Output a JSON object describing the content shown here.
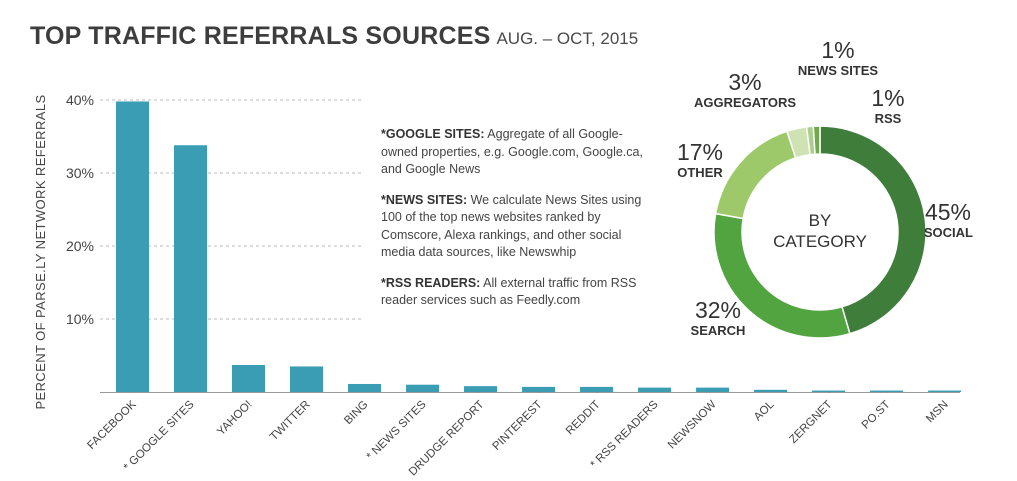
{
  "title": {
    "main": "TOP TRAFFIC REFERRALS SOURCES",
    "sub": "AUG. – OCT, 2015"
  },
  "notes": [
    {
      "label": "*GOOGLE SITES:",
      "text": "Aggregate of all Google-owned properties, e.g. Google.com, Google.ca, and Google News"
    },
    {
      "label": "*NEWS SITES:",
      "text": "We calculate News Sites using 100 of the top news websites ranked by Comscore, Alexa rankings, and other social media data sources, like Newswhip"
    },
    {
      "label": "*RSS READERS:",
      "text": "All external traffic from RSS reader services such as Feedly.com"
    }
  ],
  "colors": {
    "bar": "#3a9db3",
    "grid": "#bbbbbb",
    "social": "#3f7d3a",
    "search": "#52a441",
    "other": "#9ec96a",
    "aggregators": "#cfe2b4",
    "news_sites": "#a9cf8a",
    "rss": "#6ea84f"
  },
  "chart_data": [
    {
      "type": "bar",
      "title": "TOP TRAFFIC REFERRALS SOURCES",
      "ylabel": "PERCENT OF PARSE.LY NETWORK REFERRALS",
      "xlabel": "",
      "ylim": [
        0,
        40
      ],
      "yticks": [
        10,
        20,
        30,
        40
      ],
      "ytick_labels": [
        "10%",
        "20%",
        "30%",
        "40%"
      ],
      "grid": true,
      "categories": [
        "FACEBOOK",
        "* GOOGLE SITES",
        "YAHOO!",
        "TWITTER",
        "BING",
        "* NEWS SITES",
        "DRUDGE REPORT",
        "PINTEREST",
        "REDDIT",
        "* RSS READERS",
        "NEWSNOW",
        "AOL",
        "ZERGNET",
        "PO.ST",
        "MSN"
      ],
      "values": [
        39.8,
        33.8,
        3.7,
        3.5,
        1.1,
        1.0,
        0.8,
        0.7,
        0.7,
        0.6,
        0.6,
        0.3,
        0.2,
        0.2,
        0.2
      ]
    },
    {
      "type": "pie",
      "title": "BY CATEGORY",
      "center_label": [
        "BY",
        "CATEGORY"
      ],
      "slices": [
        {
          "label": "SOCIAL",
          "value": 45,
          "pct": "45%"
        },
        {
          "label": "SEARCH",
          "value": 32,
          "pct": "32%"
        },
        {
          "label": "OTHER",
          "value": 17,
          "pct": "17%"
        },
        {
          "label": "AGGREGATORS",
          "value": 3,
          "pct": "3%"
        },
        {
          "label": "NEWS SITES",
          "value": 1,
          "pct": "1%"
        },
        {
          "label": "RSS",
          "value": 1,
          "pct": "1%"
        }
      ]
    }
  ]
}
